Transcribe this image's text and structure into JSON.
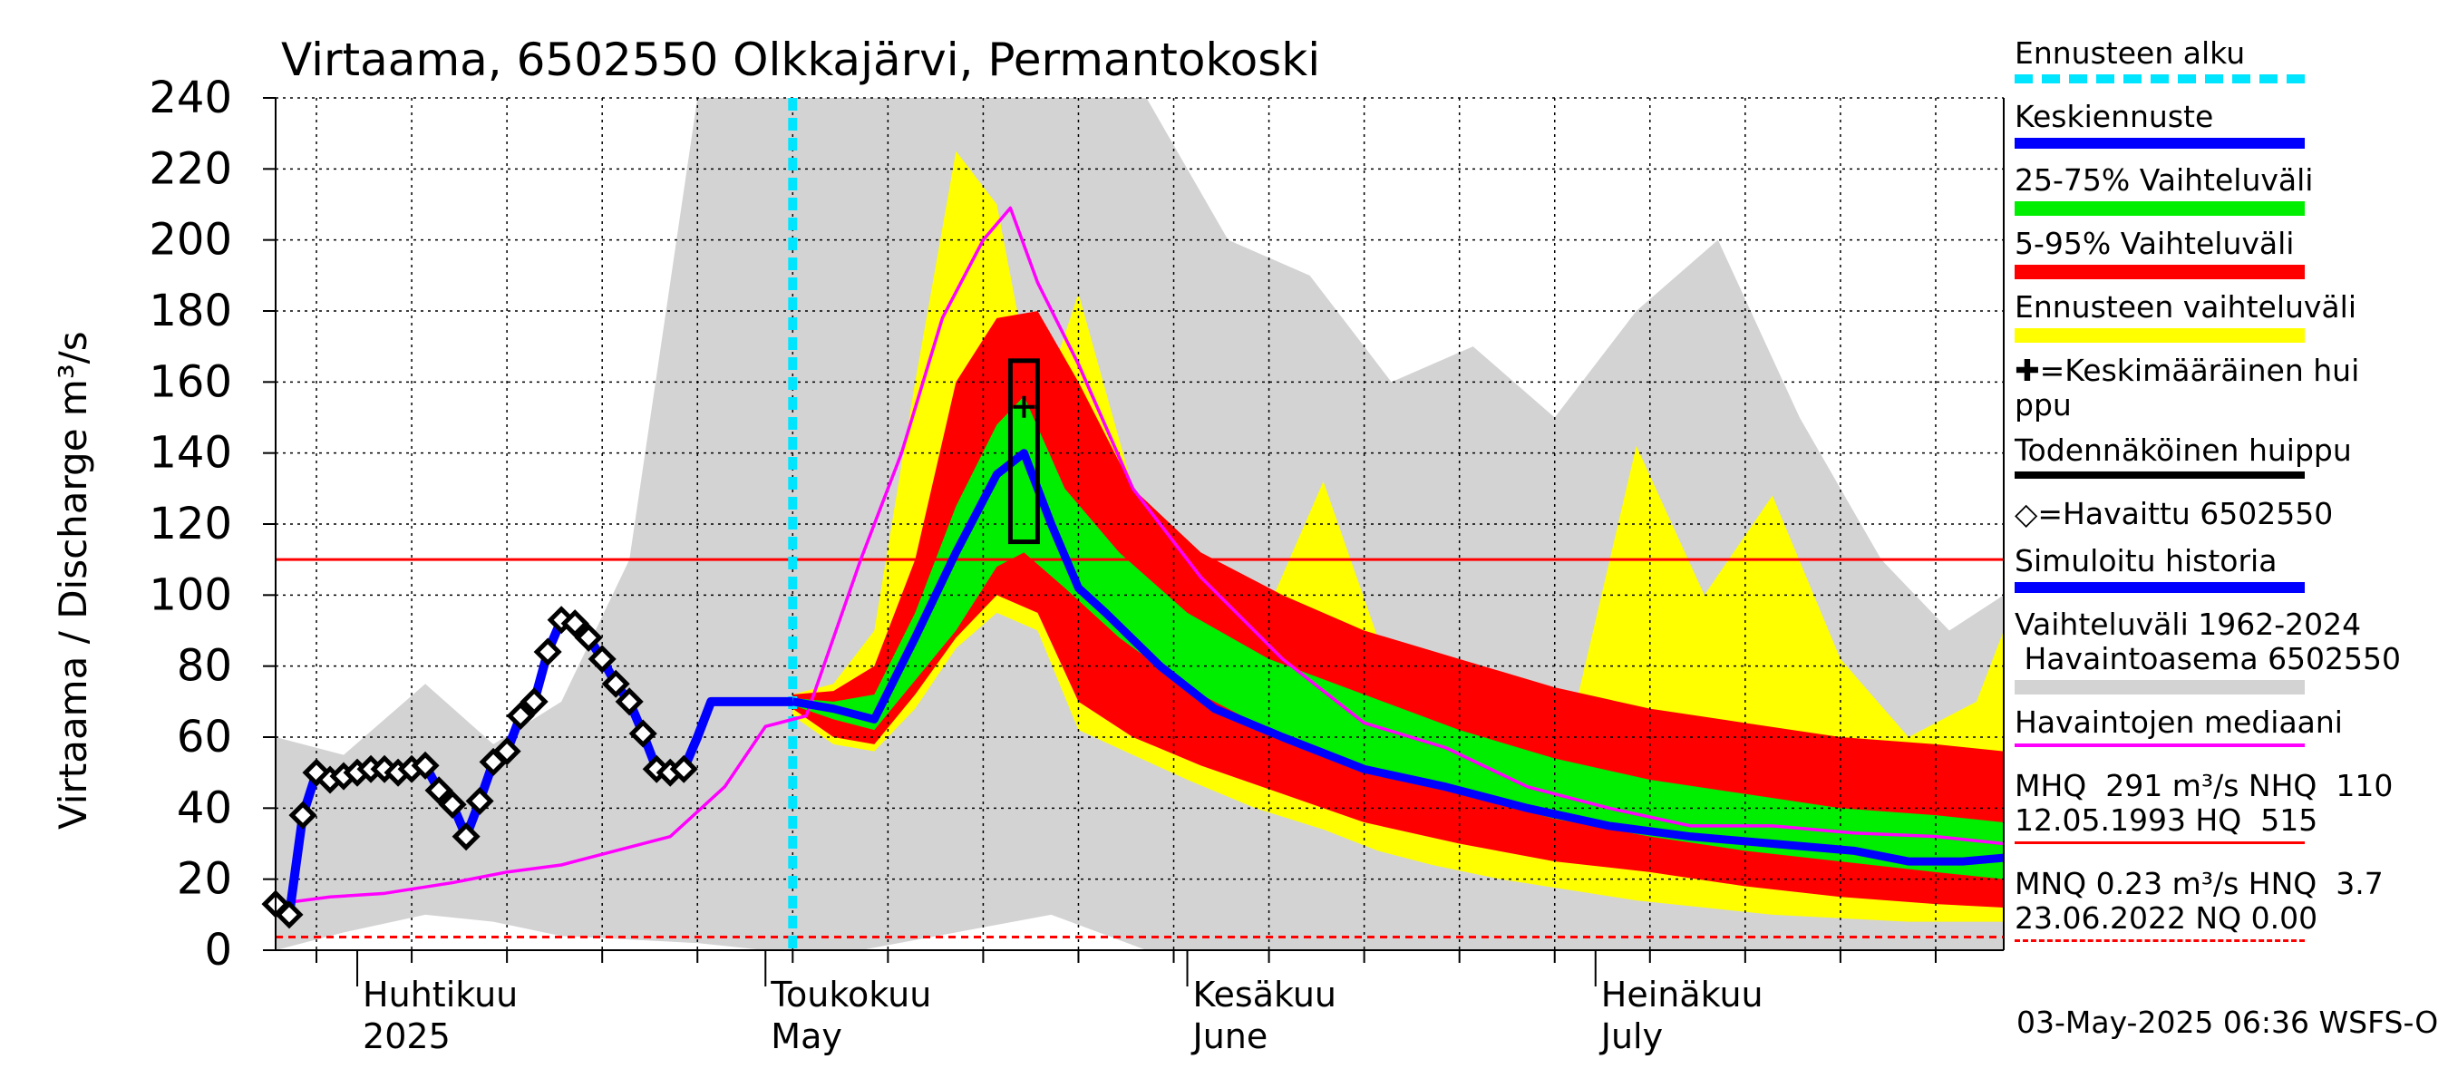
{
  "chart_data": {
    "type": "area",
    "title": "Virtaama, 6502550 Olkkajärvi, Permantokoski",
    "ylabel": "Virtaama / Discharge   m³/s",
    "ylim": [
      0,
      240
    ],
    "yticks": [
      0,
      20,
      40,
      60,
      80,
      100,
      120,
      140,
      160,
      180,
      200,
      220,
      240
    ],
    "xlim": [
      "2025-03-26",
      "2025-07-31"
    ],
    "month_labels": [
      {
        "fi": "Huhtikuu",
        "en": "2025",
        "date": "2025-04-01"
      },
      {
        "fi": "Toukokuu",
        "en": "May",
        "date": "2025-05-01"
      },
      {
        "fi": "Kesäkuu",
        "en": "June",
        "date": "2025-06-01"
      },
      {
        "fi": "Heinäkuu",
        "en": "July",
        "date": "2025-07-01"
      }
    ],
    "forecast_start": "2025-05-03",
    "reference_lines": [
      {
        "value": 110,
        "label": "NHQ",
        "color": "#ff0000",
        "style": "solid"
      },
      {
        "value": 3.7,
        "label": "HNQ",
        "color": "#ff0000",
        "style": "dashed"
      }
    ],
    "probable_peak_box": {
      "x_start": "2025-05-19",
      "x_end": "2025-05-21",
      "y_min": 115,
      "y_max": 166
    },
    "mean_peak": {
      "date": "2025-05-20",
      "value": 153
    },
    "series": [
      {
        "name": "Havaittu 6502550",
        "color": "#000000",
        "x": [
          "2025-03-26",
          "2025-03-27",
          "2025-03-28",
          "2025-03-29",
          "2025-03-30",
          "2025-03-31",
          "2025-04-01",
          "2025-04-02",
          "2025-04-03",
          "2025-04-04",
          "2025-04-05",
          "2025-04-06",
          "2025-04-07",
          "2025-04-08",
          "2025-04-09",
          "2025-04-10",
          "2025-04-11",
          "2025-04-12",
          "2025-04-13",
          "2025-04-14",
          "2025-04-15",
          "2025-04-16",
          "2025-04-17",
          "2025-04-18",
          "2025-04-19",
          "2025-04-20",
          "2025-04-21",
          "2025-04-22",
          "2025-04-23",
          "2025-04-24",
          "2025-04-25",
          "2025-04-26",
          "2025-04-27",
          "2025-04-28",
          "2025-04-29",
          "2025-04-30",
          "2025-05-01",
          "2025-05-02"
        ],
        "values": [
          13,
          10,
          38,
          50,
          48,
          49,
          50,
          51,
          51,
          50,
          51,
          52,
          45,
          41,
          32,
          42,
          53,
          56,
          66,
          70,
          84,
          93,
          92,
          88,
          82,
          75,
          70,
          61,
          51,
          50,
          51,
          null,
          null,
          null,
          null,
          null,
          null,
          null
        ]
      },
      {
        "name": "Simuloitu historia",
        "color": "#0000ff",
        "x": [
          "2025-03-26",
          "2025-03-27",
          "2025-03-28",
          "2025-03-29",
          "2025-03-30",
          "2025-03-31",
          "2025-04-01",
          "2025-04-02",
          "2025-04-03",
          "2025-04-04",
          "2025-04-05",
          "2025-04-06",
          "2025-04-07",
          "2025-04-08",
          "2025-04-09",
          "2025-04-10",
          "2025-04-11",
          "2025-04-12",
          "2025-04-13",
          "2025-04-14",
          "2025-04-15",
          "2025-04-16",
          "2025-04-17",
          "2025-04-18",
          "2025-04-19",
          "2025-04-20",
          "2025-04-21",
          "2025-04-22",
          "2025-04-23",
          "2025-04-24",
          "2025-04-25",
          "2025-04-26",
          "2025-04-27",
          "2025-04-28",
          "2025-04-29",
          "2025-04-30",
          "2025-05-01",
          "2025-05-02",
          "2025-05-03"
        ],
        "values": [
          13,
          10,
          38,
          50,
          48,
          49,
          50,
          51,
          51,
          50,
          51,
          52,
          45,
          41,
          32,
          42,
          53,
          56,
          66,
          70,
          84,
          93,
          92,
          88,
          82,
          75,
          70,
          61,
          51,
          50,
          51,
          60,
          70,
          70,
          70,
          70,
          70,
          70,
          70
        ]
      },
      {
        "name": "Keskiennuste",
        "color": "#0000ff",
        "x": [
          "2025-05-03",
          "2025-05-06",
          "2025-05-09",
          "2025-05-12",
          "2025-05-15",
          "2025-05-18",
          "2025-05-20",
          "2025-05-22",
          "2025-05-24",
          "2025-05-26",
          "2025-05-30",
          "2025-06-03",
          "2025-06-08",
          "2025-06-14",
          "2025-06-20",
          "2025-06-26",
          "2025-07-02",
          "2025-07-08",
          "2025-07-14",
          "2025-07-20",
          "2025-07-24",
          "2025-07-28",
          "2025-07-31"
        ],
        "values": [
          70,
          68,
          65,
          88,
          112,
          134,
          140,
          120,
          102,
          95,
          80,
          68,
          60,
          51,
          46,
          40,
          35,
          32,
          30,
          28,
          25,
          25,
          26
        ]
      },
      {
        "name": "Havaintojen mediaani",
        "color": "#ff00ff",
        "x": [
          "2025-03-26",
          "2025-03-30",
          "2025-04-03",
          "2025-04-08",
          "2025-04-12",
          "2025-04-16",
          "2025-04-20",
          "2025-04-24",
          "2025-04-28",
          "2025-05-01",
          "2025-05-04",
          "2025-05-08",
          "2025-05-11",
          "2025-05-14",
          "2025-05-17",
          "2025-05-19",
          "2025-05-21",
          "2025-05-24",
          "2025-05-28",
          "2025-06-02",
          "2025-06-08",
          "2025-06-14",
          "2025-06-20",
          "2025-06-26",
          "2025-07-02",
          "2025-07-08",
          "2025-07-14",
          "2025-07-20",
          "2025-07-26",
          "2025-07-31"
        ],
        "values": [
          13,
          15,
          16,
          19,
          22,
          24,
          28,
          32,
          46,
          63,
          66,
          110,
          140,
          178,
          200,
          209,
          188,
          165,
          130,
          105,
          82,
          64,
          57,
          46,
          40,
          35,
          35,
          33,
          32,
          30
        ]
      },
      {
        "name": "25-75% Vaihteluväli",
        "color": "#00ee00",
        "x": [
          "2025-05-03",
          "2025-05-06",
          "2025-05-09",
          "2025-05-12",
          "2025-05-15",
          "2025-05-18",
          "2025-05-20",
          "2025-05-23",
          "2025-05-27",
          "2025-06-01",
          "2025-06-07",
          "2025-06-14",
          "2025-06-21",
          "2025-06-28",
          "2025-07-05",
          "2025-07-12",
          "2025-07-19",
          "2025-07-26",
          "2025-07-31"
        ],
        "upper": [
          71,
          70,
          72,
          95,
          125,
          148,
          156,
          130,
          112,
          95,
          82,
          72,
          62,
          54,
          48,
          44,
          40,
          38,
          36
        ],
        "lower": [
          69,
          65,
          62,
          76,
          90,
          108,
          112,
          102,
          88,
          74,
          62,
          52,
          44,
          37,
          32,
          28,
          25,
          22,
          20
        ]
      },
      {
        "name": "5-95% Vaihteluväli",
        "color": "#ff0000",
        "x": [
          "2025-05-03",
          "2025-05-06",
          "2025-05-09",
          "2025-05-12",
          "2025-05-15",
          "2025-05-18",
          "2025-05-21",
          "2025-05-24",
          "2025-05-28",
          "2025-06-02",
          "2025-06-08",
          "2025-06-14",
          "2025-06-21",
          "2025-06-28",
          "2025-07-05",
          "2025-07-12",
          "2025-07-19",
          "2025-07-26",
          "2025-07-31"
        ],
        "upper": [
          72,
          73,
          80,
          110,
          160,
          178,
          180,
          160,
          130,
          112,
          100,
          90,
          82,
          74,
          68,
          64,
          60,
          58,
          56
        ],
        "lower": [
          68,
          60,
          58,
          72,
          88,
          100,
          95,
          70,
          60,
          52,
          44,
          36,
          30,
          25,
          22,
          18,
          15,
          13,
          12
        ]
      },
      {
        "name": "Ennusteen vaihteluväli",
        "color": "#ffff00",
        "x": [
          "2025-05-03",
          "2025-05-06",
          "2025-05-09",
          "2025-05-12",
          "2025-05-15",
          "2025-05-18",
          "2025-05-21",
          "2025-05-24",
          "2025-05-28",
          "2025-06-01",
          "2025-06-06",
          "2025-06-11",
          "2025-06-15",
          "2025-06-19",
          "2025-06-24",
          "2025-06-29",
          "2025-07-04",
          "2025-07-09",
          "2025-07-14",
          "2025-07-19",
          "2025-07-24",
          "2025-07-29",
          "2025-07-31"
        ],
        "upper": [
          72,
          75,
          90,
          160,
          225,
          210,
          150,
          185,
          130,
          90,
          88,
          132,
          88,
          70,
          62,
          60,
          142,
          100,
          128,
          82,
          60,
          70,
          90
        ],
        "lower": [
          66,
          58,
          56,
          68,
          85,
          95,
          90,
          62,
          55,
          48,
          40,
          34,
          28,
          24,
          20,
          17,
          14,
          12,
          10,
          9,
          8,
          8,
          8
        ]
      },
      {
        "name": "Vaihteluväli 1962-2024 Havaintoasema 6502550",
        "color": "#d3d3d3",
        "x": [
          "2025-03-26",
          "2025-03-31",
          "2025-04-06",
          "2025-04-11",
          "2025-04-16",
          "2025-04-21",
          "2025-04-26",
          "2025-05-01",
          "2025-05-08",
          "2025-05-15",
          "2025-05-22",
          "2025-05-29",
          "2025-06-04",
          "2025-06-10",
          "2025-06-16",
          "2025-06-22",
          "2025-06-28",
          "2025-07-04",
          "2025-07-10",
          "2025-07-16",
          "2025-07-22",
          "2025-07-27",
          "2025-07-31"
        ],
        "upper": [
          60,
          55,
          75,
          58,
          70,
          110,
          240,
          240,
          240,
          240,
          240,
          240,
          200,
          190,
          160,
          170,
          150,
          180,
          200,
          150,
          110,
          90,
          100
        ],
        "lower": [
          0,
          5,
          10,
          8,
          4,
          3,
          2,
          0,
          0,
          5,
          10,
          0,
          0,
          0,
          0,
          0,
          0,
          0,
          0,
          0,
          0,
          0,
          0
        ]
      }
    ]
  },
  "legend": {
    "forecast_start": "Ennusteen alku",
    "mean_forecast": "Keskiennuste",
    "range_25_75": "25-75% Vaihteluväli",
    "range_5_95": "5-95% Vaihteluväli",
    "forecast_range": "Ennusteen vaihteluväli",
    "mean_peak": "✚=Keskimääräinen huippu",
    "probable_peak": "Todennäköinen huippu",
    "observed": "◇=Havaittu 6502550",
    "simulated": "Simuloitu historia",
    "hist_range_1": "Vaihteluväli 1962-2024",
    "hist_range_2": " Havaintoasema 6502550",
    "median": "Havaintojen mediaani",
    "stats1a": "MHQ  291 m³/s NHQ  110",
    "stats1b": "12.05.1993 HQ  515",
    "stats2a": "MNQ 0.23 m³/s HNQ  3.7",
    "stats2b": "23.06.2022 NQ 0.00"
  },
  "timestamp": "03-May-2025 06:36 WSFS-O",
  "colors": {
    "forecast_start": "#00e5ff",
    "mean_forecast": "#0000ff",
    "range_25_75": "#00ee00",
    "range_5_95": "#ff0000",
    "forecast_range": "#ffff00",
    "probable_peak": "#000000",
    "simulated": "#0000ff",
    "hist_range": "#d3d3d3",
    "median": "#ff00ff",
    "reference": "#ff0000"
  }
}
